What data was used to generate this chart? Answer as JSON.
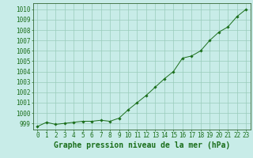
{
  "x": [
    0,
    1,
    2,
    3,
    4,
    5,
    6,
    7,
    8,
    9,
    10,
    11,
    12,
    13,
    14,
    15,
    16,
    17,
    18,
    19,
    20,
    21,
    22,
    23
  ],
  "y": [
    998.7,
    999.1,
    998.9,
    999.0,
    999.1,
    999.2,
    999.2,
    999.3,
    999.2,
    999.5,
    1000.3,
    1001.0,
    1001.7,
    1002.5,
    1003.3,
    1004.0,
    1005.3,
    1005.5,
    1006.0,
    1007.0,
    1007.8,
    1008.3,
    1009.3,
    1010.0
  ],
  "line_color": "#1a6e1a",
  "marker_color": "#1a6e1a",
  "bg_color": "#c8ece8",
  "grid_color": "#99ccbb",
  "axis_color": "#336633",
  "title": "Graphe pression niveau de la mer (hPa)",
  "xlabel_ticks": [
    "0",
    "1",
    "2",
    "3",
    "4",
    "5",
    "6",
    "7",
    "8",
    "9",
    "10",
    "11",
    "12",
    "13",
    "14",
    "15",
    "16",
    "17",
    "18",
    "19",
    "20",
    "21",
    "22",
    "23"
  ],
  "yticks": [
    999,
    1000,
    1001,
    1002,
    1003,
    1004,
    1005,
    1006,
    1007,
    1008,
    1009,
    1010
  ],
  "ylim": [
    998.4,
    1010.6
  ],
  "xlim": [
    -0.5,
    23.5
  ],
  "title_fontsize": 7,
  "tick_fontsize": 5.5,
  "title_color": "#1a6e1a",
  "tick_color": "#1a6e1a"
}
